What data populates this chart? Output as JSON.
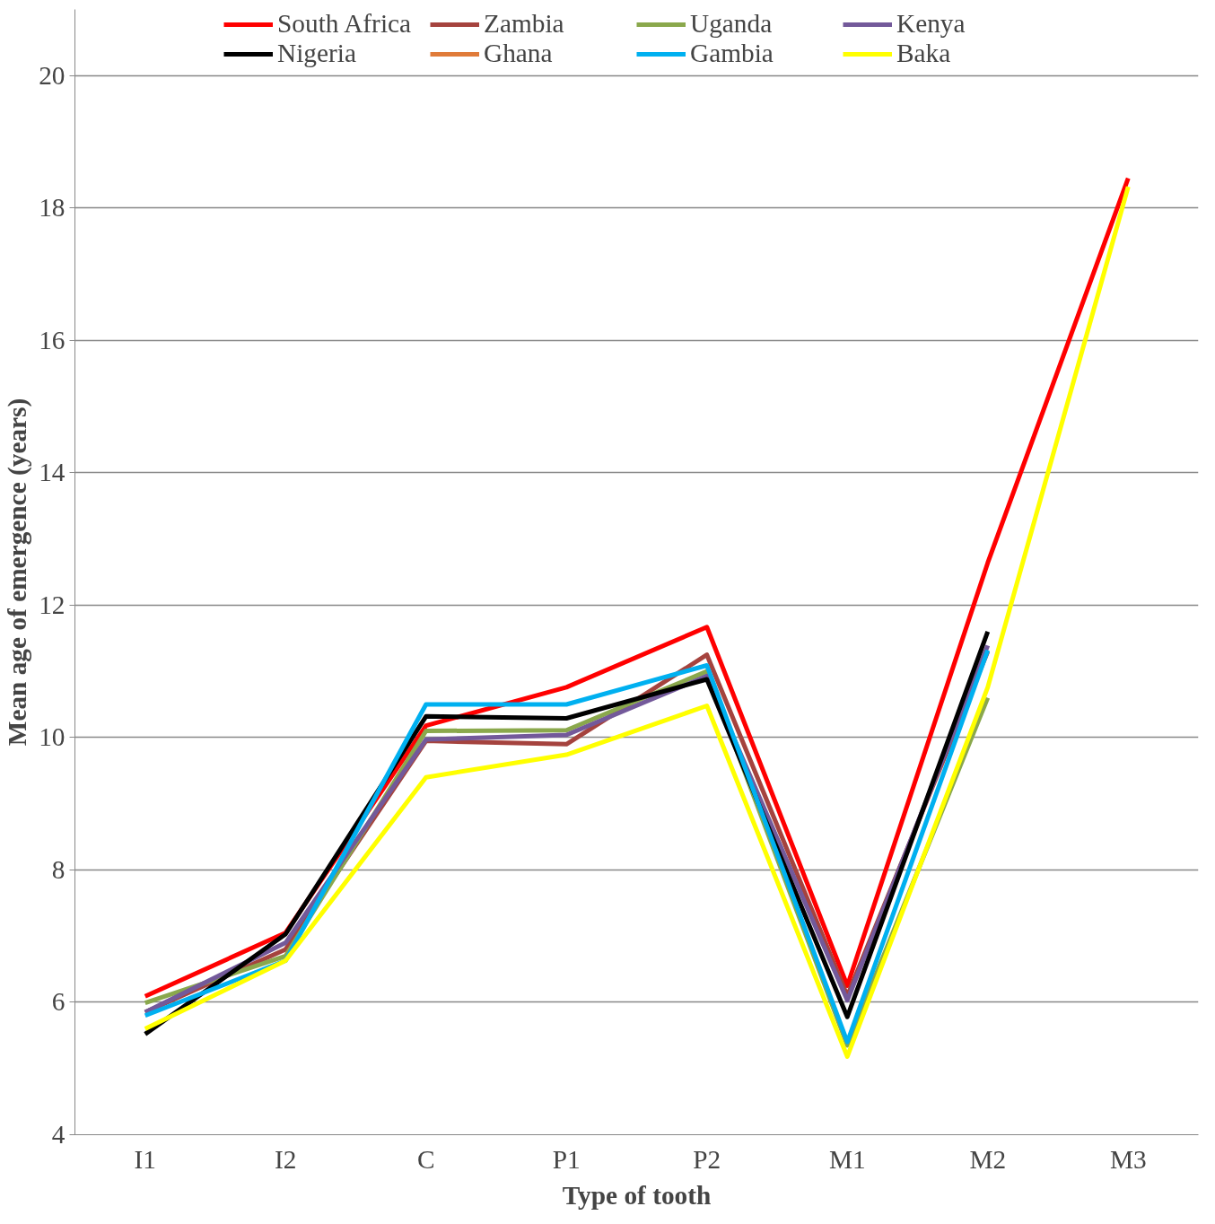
{
  "chart_data": {
    "type": "line",
    "xlabel": "Type of tooth",
    "ylabel": "Mean age of emergence (years)",
    "categories": [
      "I1",
      "I2",
      "C",
      "P1",
      "P2",
      "M1",
      "M2",
      "M3"
    ],
    "ylim": [
      4,
      21
    ],
    "yticks": [
      4,
      6,
      8,
      10,
      12,
      14,
      16,
      18,
      20
    ],
    "grid": "y",
    "legend": "top",
    "marker": "none",
    "line_style": "solid",
    "series": [
      {
        "name": "South Africa",
        "color": "#ff0000",
        "values": [
          6.09,
          7.05,
          10.18,
          10.76,
          11.67,
          6.25,
          12.64,
          18.45
        ]
      },
      {
        "name": "Zambia",
        "color": "#a5433e",
        "values": [
          5.85,
          6.8,
          9.95,
          9.9,
          11.25,
          6.1,
          11.3,
          null
        ]
      },
      {
        "name": "Uganda",
        "color": "#8aa84c",
        "values": [
          5.99,
          6.7,
          10.1,
          10.11,
          11.0,
          5.35,
          10.6,
          null
        ]
      },
      {
        "name": "Kenya",
        "color": "#73599a",
        "values": [
          5.85,
          6.9,
          9.97,
          10.04,
          10.93,
          6.03,
          11.39,
          null
        ]
      },
      {
        "name": "Nigeria",
        "color": "#000000",
        "values": [
          5.52,
          7.03,
          10.32,
          10.29,
          10.88,
          5.78,
          11.6,
          null
        ]
      },
      {
        "name": "Ghana",
        "color": "#e07b39",
        "values": [
          null,
          null,
          null,
          null,
          null,
          null,
          null,
          null
        ]
      },
      {
        "name": "Gambia",
        "color": "#00b0f0",
        "values": [
          5.8,
          6.63,
          10.5,
          10.5,
          11.09,
          5.4,
          11.32,
          null
        ]
      },
      {
        "name": "Baka",
        "color": "#ffff00",
        "values": [
          5.6,
          6.63,
          9.4,
          9.74,
          10.48,
          5.18,
          10.76,
          18.32
        ]
      }
    ]
  }
}
